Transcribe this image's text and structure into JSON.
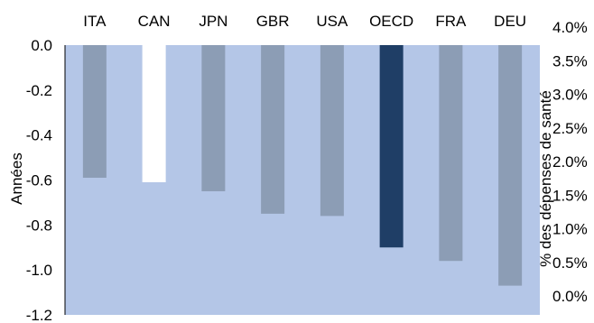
{
  "chart_data": {
    "type": "bar",
    "categories": [
      "ITA",
      "CAN",
      "JPN",
      "GBR",
      "USA",
      "OECD",
      "FRA",
      "DEU"
    ],
    "values": [
      -0.59,
      -0.61,
      -0.65,
      -0.75,
      -0.76,
      -0.9,
      -0.96,
      -1.07
    ],
    "ylabel": "Années",
    "ylim": [
      -1.2,
      0.0
    ],
    "yticks": [
      "0.0",
      "-0.2",
      "-0.4",
      "-0.6",
      "-0.8",
      "-1.0",
      "-1.2"
    ],
    "y2label": "% des dépenses de santé",
    "y2lim": [
      0.0,
      4.0
    ],
    "y2ticks": [
      "0.0%",
      "0.5%",
      "1.0%",
      "1.5%",
      "2.0%",
      "2.5%",
      "3.0%",
      "3.5%",
      "4.0%"
    ],
    "category_axis_position": "top",
    "grid": false,
    "colors": {
      "plot_background": "#b4c6e7",
      "bar_default": "#8c9db5",
      "bar_CAN": "#ffffff",
      "bar_OECD": "#1f3e66",
      "axis": "#000000"
    }
  }
}
